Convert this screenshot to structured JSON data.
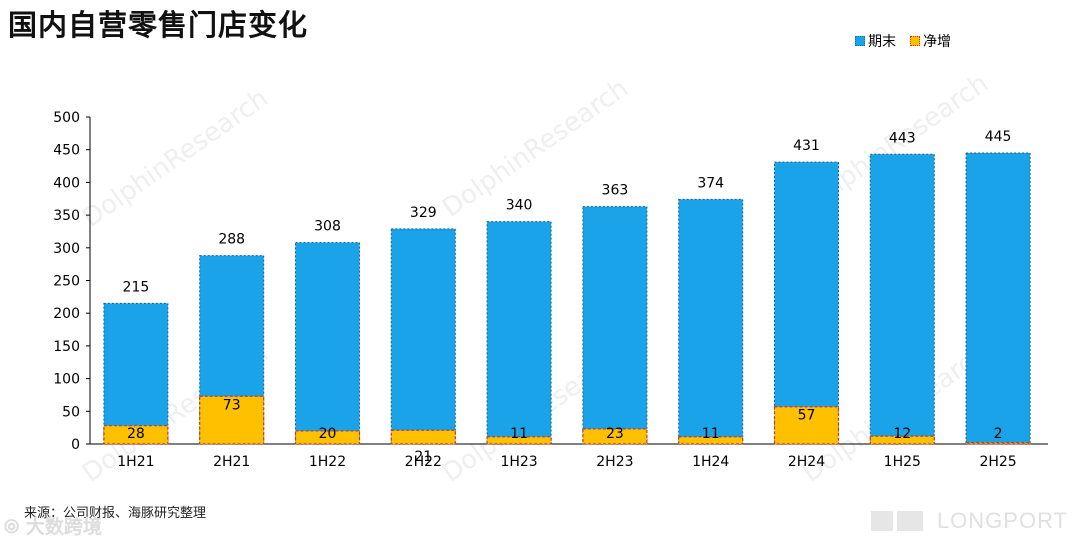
{
  "title": "国内自营零售门店变化",
  "legend": {
    "total_label": "期末",
    "net_label": "净增"
  },
  "colors": {
    "total": "#1aa3e8",
    "net": "#ffc000",
    "total_border": "#1a5f8a",
    "net_border": "#c0392b"
  },
  "source": "来源：公司财报、海豚研究整理",
  "watermark": "DolphinResearch",
  "corner_logo": "大数跨境",
  "brand_logo": "LONGPORT",
  "chart_data": {
    "type": "bar",
    "categories": [
      "1H21",
      "2H21",
      "1H22",
      "2H22",
      "1H23",
      "2H23",
      "1H24",
      "2H24",
      "1H25",
      "2H25"
    ],
    "series": [
      {
        "name": "期末",
        "values": [
          215,
          288,
          308,
          329,
          340,
          363,
          374,
          431,
          443,
          445
        ]
      },
      {
        "name": "净增",
        "values": [
          28,
          73,
          20,
          21,
          11,
          23,
          11,
          57,
          12,
          2
        ]
      }
    ],
    "ylim": [
      0,
      500
    ],
    "yticks": [
      0,
      50,
      100,
      150,
      200,
      250,
      300,
      350,
      400,
      450,
      500
    ],
    "legend_position": "top-right"
  }
}
